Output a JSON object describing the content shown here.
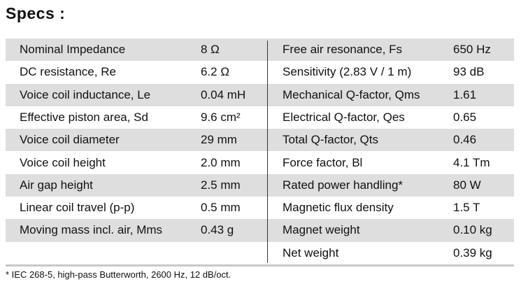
{
  "title": "Specs :",
  "table": {
    "left": [
      {
        "label": "Nominal Impedance",
        "value": "8 Ω"
      },
      {
        "label": "DC resistance, Re",
        "value": "6.2 Ω"
      },
      {
        "label": "Voice coil inductance, Le",
        "value": "0.04 mH"
      },
      {
        "label": "Effective piston area, Sd",
        "value": "9.6 cm²"
      },
      {
        "label": "Voice coil diameter",
        "value": "29 mm"
      },
      {
        "label": "Voice coil height",
        "value": "2.0 mm"
      },
      {
        "label": "Air gap height",
        "value": "2.5 mm"
      },
      {
        "label": "Linear coil travel (p-p)",
        "value": "0.5 mm"
      },
      {
        "label": "Moving mass incl. air, Mms",
        "value": "0.43 g"
      }
    ],
    "right": [
      {
        "label": "Free air resonance, Fs",
        "value": "650 Hz"
      },
      {
        "label": "Sensitivity (2.83 V / 1 m)",
        "value": "93 dB"
      },
      {
        "label": "Mechanical Q-factor, Qms",
        "value": "1.61"
      },
      {
        "label": "Electrical Q-factor, Qes",
        "value": "0.65"
      },
      {
        "label": "Total Q-factor, Qts",
        "value": "0.46"
      },
      {
        "label": "Force factor, Bl",
        "value": "4.1 Tm"
      },
      {
        "label": "Rated power handling*",
        "value": "80 W"
      },
      {
        "label": "Magnetic flux density",
        "value": "1.5 T"
      },
      {
        "label": "Magnet weight",
        "value": "0.10 kg"
      },
      {
        "label": "Net weight",
        "value": "0.39 kg"
      }
    ]
  },
  "footnote": "* IEC 268-5, high-pass Butterworth, 2600 Hz, 12 dB/oct."
}
